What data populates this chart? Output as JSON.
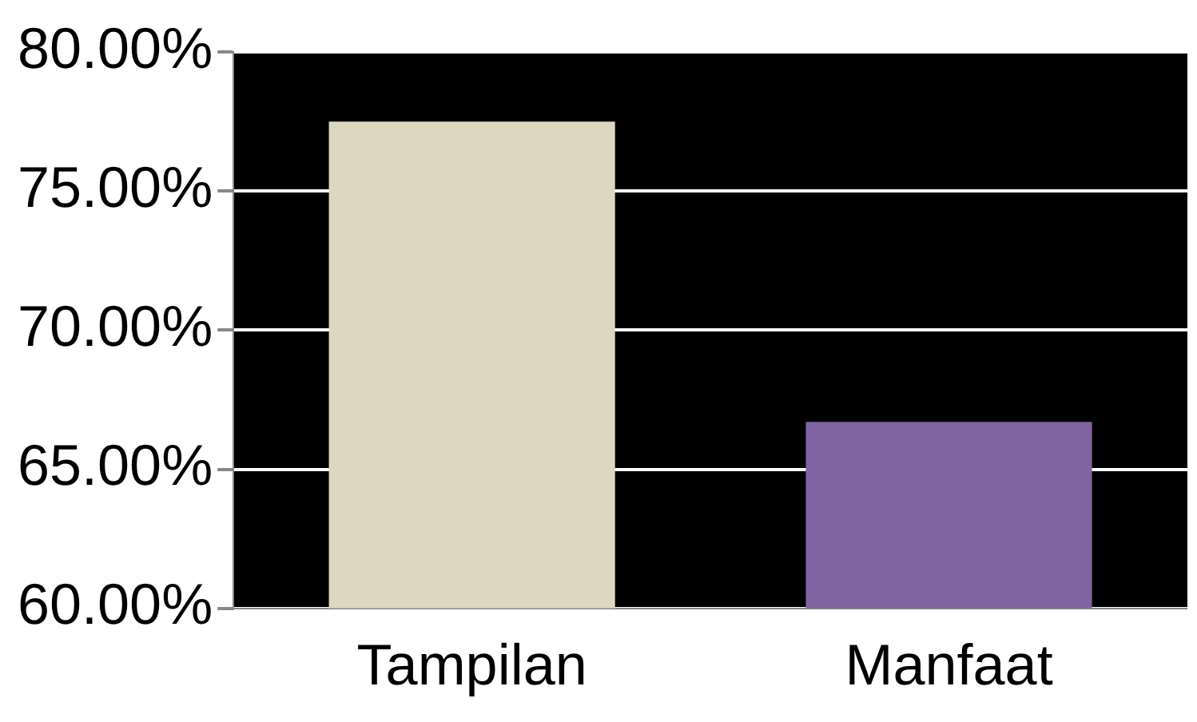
{
  "chart_data": {
    "type": "bar",
    "categories": [
      "Tampilan",
      "Manfaat"
    ],
    "values": [
      77.5,
      66.7
    ],
    "colors": [
      "#ddd7c1",
      "#8064a2"
    ],
    "ylim": [
      60,
      80
    ],
    "yticks": [
      {
        "value": 60,
        "label": "60.00%"
      },
      {
        "value": 65,
        "label": "65.00%"
      },
      {
        "value": 70,
        "label": "70.00%"
      },
      {
        "value": 75,
        "label": "75.00%"
      },
      {
        "value": 80,
        "label": "80.00%"
      }
    ],
    "grid": "y"
  }
}
